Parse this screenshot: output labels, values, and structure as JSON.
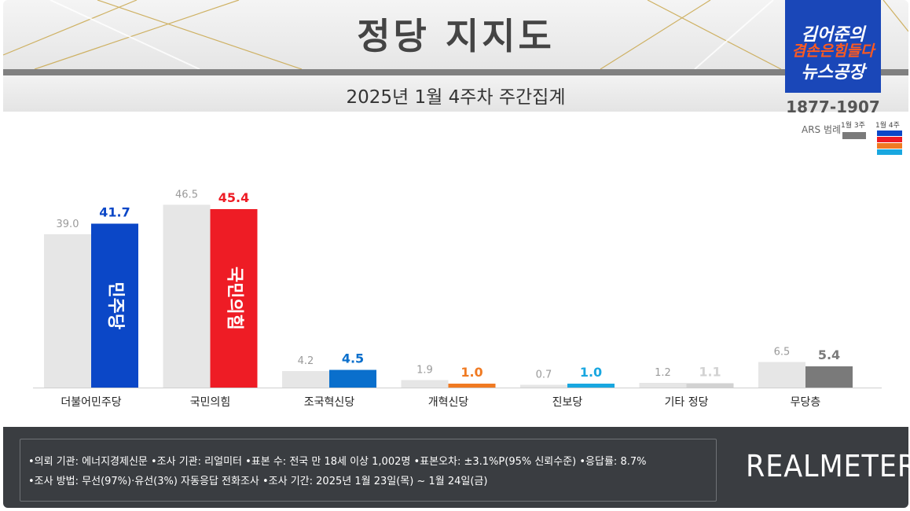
{
  "header": {
    "title": "정당 지지도",
    "subtitle": "2025년 1월 4주차 주간집계"
  },
  "logo": {
    "line1": "김어준의",
    "line2": "겸손은힘들다",
    "line3": "뉴스공장",
    "phone": "1877-1907",
    "ars": "ARS 범례",
    "legend_prev": "1월 3주",
    "legend_curr": "1월 4주"
  },
  "colors": {
    "prev_week": "#e6e6e6",
    "democratic": "#0b47c7",
    "ppp": "#ee1c25",
    "rebuild": "#0a6fcc",
    "reform": "#f07a22",
    "progressive": "#19a7e0",
    "others": "#d2d2d2",
    "none": "#7a7a7a"
  },
  "chart_data": {
    "type": "bar",
    "categories": [
      "더불어민주당",
      "국민의힘",
      "조국혁신당",
      "개혁신당",
      "진보당",
      "기타 정당",
      "무당층"
    ],
    "series": [
      {
        "name": "1월 3주",
        "values": [
          39.0,
          46.5,
          4.2,
          1.9,
          0.7,
          1.2,
          6.5
        ],
        "labels": [
          "39.0",
          "46.5",
          "4.2",
          "1.9",
          "0.7",
          "1.2",
          "6.5"
        ]
      },
      {
        "name": "1월 4주",
        "values": [
          41.7,
          45.4,
          4.5,
          1.0,
          1.0,
          1.1,
          5.4
        ],
        "labels": [
          "41.7",
          "45.4",
          "4.5",
          "1.0",
          "1.0",
          "1.1",
          "5.4"
        ]
      }
    ],
    "bar_logos": [
      "민주당",
      "국민의힘"
    ],
    "ylim": [
      0,
      50
    ],
    "grid": false
  },
  "footer": {
    "note1": "•의뢰 기관: 에너지경제신문  •조사 기관: 리얼미터 •표본 수: 전국 만 18세 이상 1,002명 •표본오차: ±3.1%P(95% 신뢰수준) •응답률: 8.7%",
    "note2": "•조사 방법: 무선(97%)·유선(3%) 자동응답 전화조사 •조사 기간: 2025년 1월 23일(목) ~ 1월 24일(금)",
    "brand": "REALMETER"
  }
}
